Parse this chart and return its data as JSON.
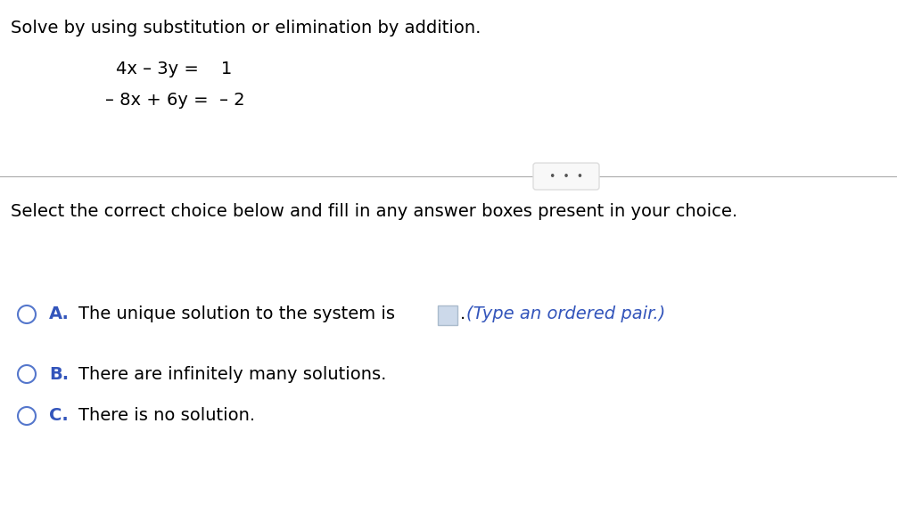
{
  "background_color": "#ffffff",
  "title_text": "Solve by using substitution or elimination by addition.",
  "title_fontsize": 14,
  "title_color": "#000000",
  "eq1": "4x – 3y =    1",
  "eq2": "– 8x + 6y =  – 2",
  "eq_fontsize": 14,
  "eq_color": "#000000",
  "divider_color": "#aaaaaa",
  "dots_text": "•  •  •",
  "dots_fontsize": 9,
  "dots_color": "#555555",
  "dots_box_color": "#dddddd",
  "dots_box_fill": "#f8f8f8",
  "select_text": "Select the correct choice below and fill in any answer boxes present in your choice.",
  "select_fontsize": 14,
  "select_color": "#000000",
  "option_label_color": "#3355bb",
  "option_text_color": "#000000",
  "option_label_fontsize": 14,
  "option_text_fontsize": 14,
  "circle_color": "#5577cc",
  "optA_label": "A.",
  "optA_text": "The unique solution to the system is",
  "optA_hint": "(Type an ordered pair.)",
  "optB_label": "B.",
  "optB_text": "There are infinitely many solutions.",
  "optC_label": "C.",
  "optC_text": "There is no solution.",
  "box_fill": "#ccd9ea",
  "box_edge": "#aabbcc",
  "hint_color": "#3355bb"
}
